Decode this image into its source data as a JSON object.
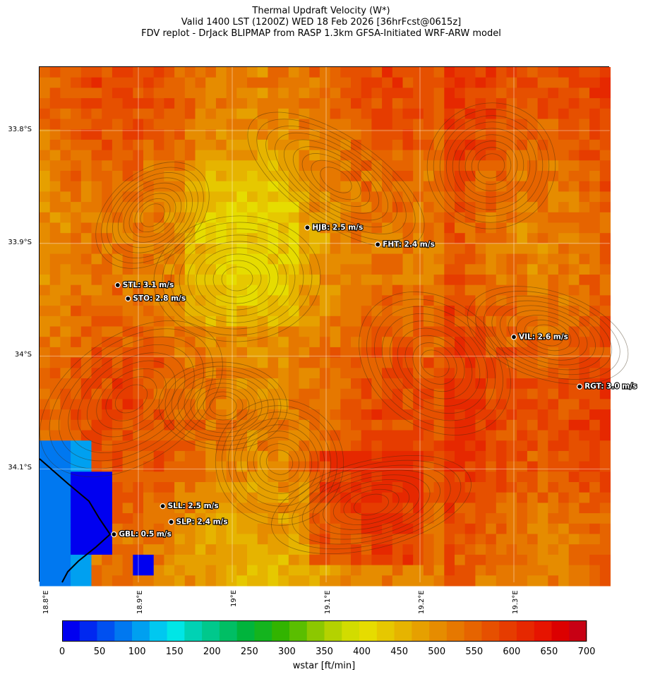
{
  "title": {
    "line1": "Thermal Updraft Velocity (W*)",
    "line2": "Valid 1400 LST (1200Z) WED 18 Feb 2026 [36hrFcst@0615z]",
    "line3": "FDV replot - DrJack BLIPMAP from RASP 1.3km GFSA-Initiated WRF-ARW model"
  },
  "lat_labels": [
    "33.8°S",
    "33.9°S",
    "34°S",
    "34.1°S"
  ],
  "lon_labels": [
    "18.8°E",
    "18.9°E",
    "19°E",
    "19.1°E",
    "19.2°E",
    "19.3°E"
  ],
  "stations": [
    {
      "code": "HJB",
      "label": "HJB: 2.5 m/s",
      "lon": 19.08,
      "lat": 33.886
    },
    {
      "code": "FHT",
      "label": "FHT: 2.4 m/s",
      "lon": 19.155,
      "lat": 33.901
    },
    {
      "code": "STL",
      "label": "STL: 3.1 m/s",
      "lon": 18.878,
      "lat": 33.937
    },
    {
      "code": "STO",
      "label": "STO: 2.8 m/s",
      "lon": 18.889,
      "lat": 33.949
    },
    {
      "code": "VIL",
      "label": "VIL: 2.6 m/s",
      "lon": 19.3,
      "lat": 33.983
    },
    {
      "code": "RGT",
      "label": "RGT: 3.0 m/s",
      "lon": 19.37,
      "lat": 34.027
    },
    {
      "code": "SLL",
      "label": "SLL: 2.5 m/s",
      "lon": 18.926,
      "lat": 34.133
    },
    {
      "code": "SLP",
      "label": "SLP: 2.4 m/s",
      "lon": 18.935,
      "lat": 34.147
    },
    {
      "code": "GBL",
      "label": "GBL: 0.5 m/s",
      "lon": 18.874,
      "lat": 34.158
    }
  ],
  "colorbar": {
    "label": "wstar [ft/min]",
    "ticks": [
      "0",
      "50",
      "100",
      "150",
      "200",
      "250",
      "300",
      "350",
      "400",
      "450",
      "500",
      "550",
      "600",
      "650",
      "700"
    ],
    "colors": [
      "#0000f0",
      "#0028f0",
      "#0050f0",
      "#0078f0",
      "#00a0f0",
      "#00c8f0",
      "#00e6e6",
      "#00d2b4",
      "#00c88c",
      "#00be64",
      "#00b43c",
      "#14b41e",
      "#32b400",
      "#5abe00",
      "#8cc800",
      "#b4d200",
      "#d2dc00",
      "#e6dc00",
      "#e6c800",
      "#e6b400",
      "#e6a000",
      "#e68c00",
      "#e67800",
      "#e66400",
      "#e65000",
      "#e63c00",
      "#e62800",
      "#e61400",
      "#dc0000",
      "#c80014"
    ]
  }
}
